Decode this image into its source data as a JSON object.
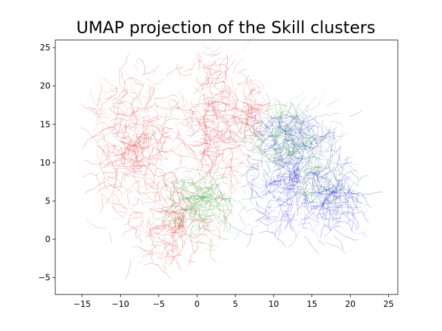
{
  "chart_data": {
    "type": "scatter",
    "title": "UMAP projection of the Skill clusters",
    "xlabel": "",
    "ylabel": "",
    "xlim": [
      -18.5,
      26.2
    ],
    "ylim": [
      -7.2,
      26.0
    ],
    "x_ticks": [
      -15,
      -10,
      -5,
      0,
      5,
      10,
      15,
      20,
      25
    ],
    "y_ticks": [
      -5,
      0,
      5,
      10,
      15,
      20,
      25
    ],
    "grid": false,
    "legend": "none",
    "series": [
      {
        "color": "#d62728",
        "approximate_extent": {
          "x": [
            -13,
            7
          ],
          "y": [
            -6,
            24.5
          ]
        },
        "regions": [
          {
            "center": [
              -8.5,
              12.5
            ],
            "spread": [
              2.6,
              3.8
            ],
            "count": 320
          },
          {
            "center": [
              2.2,
              15.0
            ],
            "spread": [
              2.0,
              4.8
            ],
            "count": 300
          },
          {
            "center": [
              -3.5,
              2.0
            ],
            "spread": [
              2.6,
              2.6
            ],
            "count": 200
          },
          {
            "center": [
              8.8,
              17.0
            ],
            "spread": [
              1.2,
              1.8
            ],
            "count": 60
          }
        ]
      },
      {
        "color": "#2ca02c",
        "approximate_extent": {
          "x": [
            -4,
            21
          ],
          "y": [
            0,
            17.5
          ]
        },
        "regions": [
          {
            "center": [
              0.5,
              4.5
            ],
            "spread": [
              2.2,
              2.0
            ],
            "count": 200
          },
          {
            "center": [
              11.5,
              13.0
            ],
            "spread": [
              2.2,
              2.6
            ],
            "count": 200
          },
          {
            "center": [
              15.5,
              7.5
            ],
            "spread": [
              2.4,
              2.0
            ],
            "count": 80
          }
        ]
      },
      {
        "color": "#1f1fd6",
        "approximate_extent": {
          "x": [
            6.5,
            21.5
          ],
          "y": [
            -1,
            16
          ]
        },
        "regions": [
          {
            "center": [
              11.5,
              8.0
            ],
            "spread": [
              2.5,
              3.5
            ],
            "count": 260
          },
          {
            "center": [
              17.5,
              5.0
            ],
            "spread": [
              2.0,
              2.4
            ],
            "count": 180
          },
          {
            "center": [
              13.5,
              13.5
            ],
            "spread": [
              2.6,
              1.6
            ],
            "count": 120
          }
        ]
      }
    ]
  }
}
